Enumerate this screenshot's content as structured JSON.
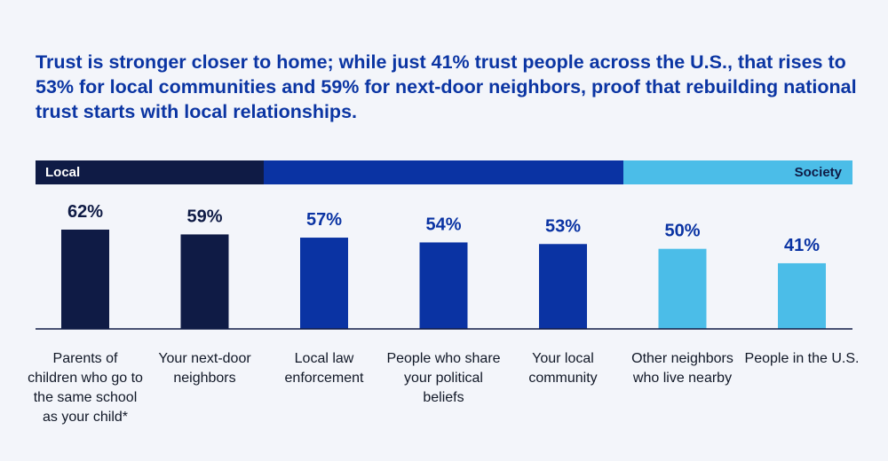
{
  "headline": "Trust is stronger closer to home; while just 41% trust people across the U.S., that rises to 53% for local communities and 59% for next-door neighbors, proof that rebuilding national trust starts with local relationships.",
  "bands": {
    "local_label": "Local",
    "society_label": "Society",
    "colors": {
      "local": "#0f1b45",
      "mid": "#0a33a3",
      "society": "#4bbde8"
    }
  },
  "chart_data": {
    "type": "bar",
    "title": "",
    "xlabel": "",
    "ylabel": "",
    "ylim": [
      0,
      62
    ],
    "categories": [
      "Parents of children who go to the same school as your child*",
      "Your next-door neighbors",
      "Local law enforcement",
      "People who share your political beliefs",
      "Your local community",
      "Other neighbors who live nearby",
      "People in the U.S."
    ],
    "values": [
      62,
      59,
      57,
      54,
      53,
      50,
      41
    ],
    "value_labels": [
      "62%",
      "59%",
      "57%",
      "54%",
      "53%",
      "50%",
      "41%"
    ],
    "bar_colors": [
      "#0f1b45",
      "#0f1b45",
      "#0a33a3",
      "#0a33a3",
      "#0a33a3",
      "#4bbde8",
      "#4bbde8"
    ],
    "label_colors": [
      "#0f1b45",
      "#0f1b45",
      "#0a33a3",
      "#0a33a3",
      "#0a33a3",
      "#0a33a3",
      "#0a33a3"
    ],
    "grid": false,
    "legend": "none"
  }
}
